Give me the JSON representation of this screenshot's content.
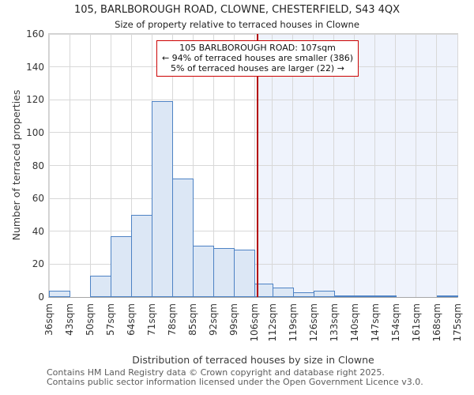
{
  "chart_data": {
    "type": "bar",
    "title": "105, BARLBOROUGH ROAD, CLOWNE, CHESTERFIELD, S43 4QX",
    "subtitle": "Size of property relative to terraced houses in Clowne",
    "xlabel": "Distribution of terraced houses by size in Clowne",
    "ylabel": "Number of terraced properties",
    "ylim": [
      0,
      160
    ],
    "y_ticks": [
      0,
      20,
      40,
      60,
      80,
      100,
      120,
      140,
      160
    ],
    "bin_edges_sqm": [
      36,
      43,
      50,
      57,
      64,
      71,
      78,
      85,
      92,
      99,
      106,
      112,
      119,
      126,
      133,
      140,
      147,
      154,
      161,
      168,
      175
    ],
    "x_tick_labels": [
      "36sqm",
      "43sqm",
      "50sqm",
      "57sqm",
      "64sqm",
      "71sqm",
      "78sqm",
      "85sqm",
      "92sqm",
      "99sqm",
      "106sqm",
      "112sqm",
      "119sqm",
      "126sqm",
      "133sqm",
      "140sqm",
      "147sqm",
      "154sqm",
      "161sqm",
      "168sqm",
      "175sqm"
    ],
    "counts": [
      4,
      0,
      13,
      37,
      50,
      119,
      72,
      31,
      30,
      29,
      8,
      6,
      3,
      4,
      1,
      1,
      1,
      0,
      0,
      1
    ],
    "grid": true,
    "legend": "none",
    "marker": {
      "value_sqm": 107,
      "shade_right_of_marker": true
    },
    "annotation": {
      "line1": "105 BARLBOROUGH ROAD: 107sqm",
      "line2": "← 94% of terraced houses are smaller (386)",
      "line3": "5% of terraced houses are larger (22) →"
    },
    "colors": {
      "bar_fill": "#dce7f5",
      "bar_border": "#4d82c4",
      "marker_line": "#b30000",
      "annotation_border": "#cc0000",
      "shade_right_bg": "#eff3fc",
      "grid": "#d8d8d8"
    }
  },
  "footer": {
    "line1": "Contains HM Land Registry data © Crown copyright and database right 2025.",
    "line2": "Contains public sector information licensed under the Open Government Licence v3.0."
  }
}
